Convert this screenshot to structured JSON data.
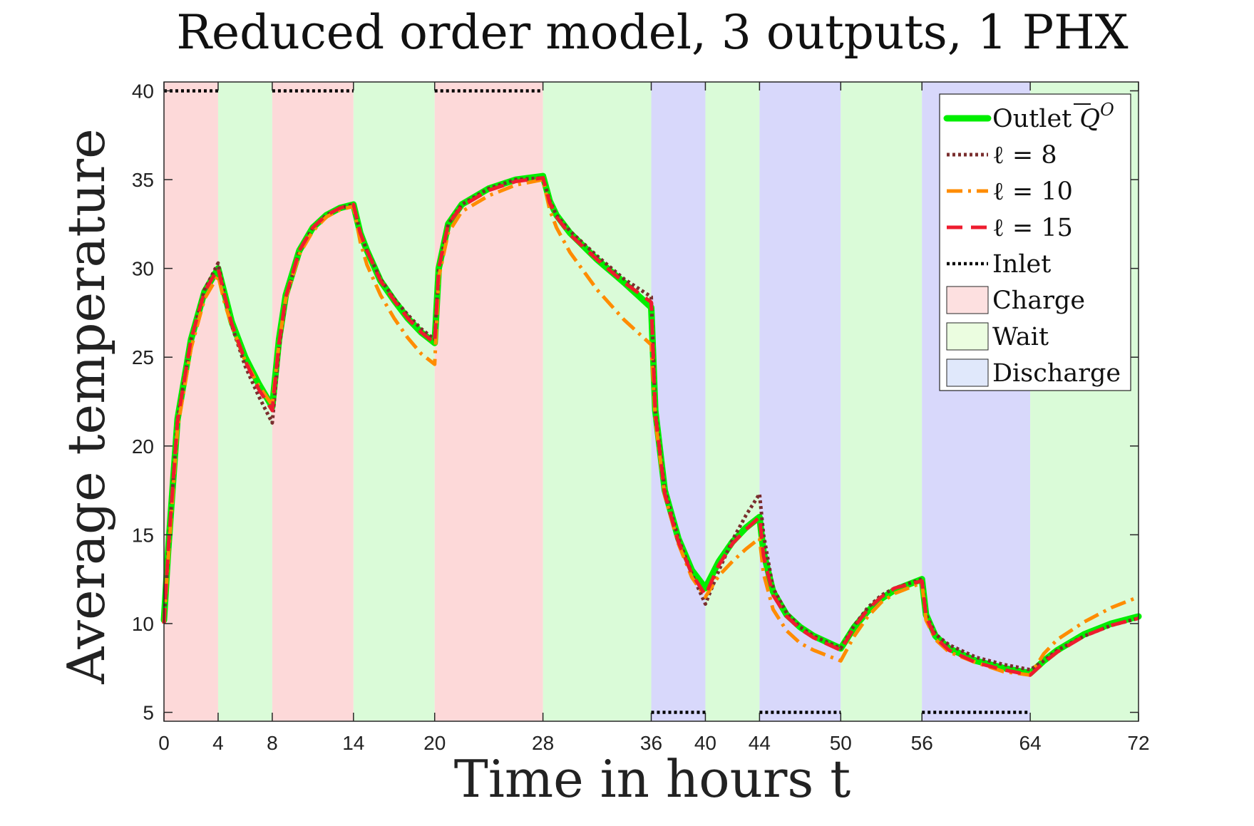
{
  "chart_data": {
    "type": "line",
    "title": "Reduced order model, 3 outputs, 1 PHX",
    "xlabel": "Time in hours t",
    "ylabel": "Average temperature",
    "xlim": [
      0,
      72
    ],
    "ylim": [
      4.5,
      40.5
    ],
    "xticks": [
      0,
      4,
      8,
      14,
      20,
      28,
      36,
      40,
      44,
      50,
      56,
      64,
      72
    ],
    "yticks": [
      5,
      10,
      15,
      20,
      25,
      30,
      35,
      40
    ],
    "grid": false,
    "legend_position": "top-right",
    "phases": [
      {
        "label": "Charge",
        "start": 0,
        "end": 4
      },
      {
        "label": "Wait",
        "start": 4,
        "end": 8
      },
      {
        "label": "Charge",
        "start": 8,
        "end": 14
      },
      {
        "label": "Wait",
        "start": 14,
        "end": 20
      },
      {
        "label": "Charge",
        "start": 20,
        "end": 28
      },
      {
        "label": "Wait",
        "start": 28,
        "end": 36
      },
      {
        "label": "Discharge",
        "start": 36,
        "end": 40
      },
      {
        "label": "Wait",
        "start": 40,
        "end": 44
      },
      {
        "label": "Discharge",
        "start": 44,
        "end": 50
      },
      {
        "label": "Wait",
        "start": 50,
        "end": 56
      },
      {
        "label": "Discharge",
        "start": 56,
        "end": 64
      },
      {
        "label": "Wait",
        "start": 64,
        "end": 72
      }
    ],
    "phase_colors": {
      "Charge": "#fdd9d9",
      "Wait": "#dafbd8",
      "Discharge": "#d8d8fb"
    },
    "legend_patch_colors": {
      "Charge": "#fde0e0",
      "Wait": "#ebfde0",
      "Discharge": "#e0e8fb"
    },
    "series": [
      {
        "name": "Outlet",
        "legend_math": "Q^O (overlined)",
        "color": "#00ee00",
        "style": "solid",
        "width": 9,
        "x": [
          0,
          0.3,
          1,
          2,
          3,
          4,
          4.5,
          5,
          6,
          7,
          8,
          8.5,
          9,
          10,
          11,
          12,
          13,
          14,
          14.5,
          15,
          16,
          17,
          18,
          19,
          20,
          20.3,
          21,
          22,
          24,
          26,
          28,
          28.5,
          29,
          30,
          32,
          34,
          36,
          36.3,
          37,
          38,
          39,
          40,
          41,
          42,
          43,
          44,
          44.3,
          45,
          46,
          47,
          48,
          50,
          51,
          52,
          53,
          54,
          56,
          56.3,
          57,
          58,
          60,
          62,
          64,
          65,
          66,
          68,
          70,
          72
        ],
        "y": [
          10.2,
          14,
          21.5,
          26,
          28.7,
          30,
          28.5,
          27,
          25,
          23.5,
          22.2,
          26,
          28.5,
          31,
          32.3,
          33,
          33.4,
          33.6,
          32,
          31,
          29.3,
          28.2,
          27.2,
          26.4,
          25.8,
          30,
          32.5,
          33.6,
          34.5,
          35,
          35.2,
          33.8,
          33,
          32,
          30.5,
          29.2,
          27.8,
          22,
          17.5,
          14.8,
          13,
          12,
          13.5,
          14.6,
          15.4,
          16,
          14,
          11.8,
          10.5,
          9.8,
          9.3,
          8.6,
          9.8,
          10.7,
          11.4,
          11.9,
          12.5,
          10.5,
          9.3,
          8.6,
          7.9,
          7.5,
          7.2,
          7.9,
          8.5,
          9.4,
          10,
          10.4
        ]
      },
      {
        "name": "ℓ = 8",
        "color": "#7a2e2e",
        "style": "dotted",
        "width": 5,
        "x": [
          0,
          0.3,
          1,
          2,
          3,
          4,
          4.5,
          5,
          6,
          7,
          8,
          8.5,
          9,
          10,
          11,
          12,
          13,
          14,
          14.5,
          15,
          16,
          17,
          18,
          19,
          20,
          20.3,
          21,
          22,
          24,
          26,
          28,
          28.5,
          29,
          30,
          32,
          34,
          36,
          36.3,
          37,
          38,
          39,
          40,
          41,
          42,
          43,
          44,
          44.3,
          45,
          46,
          47,
          48,
          50,
          51,
          52,
          53,
          54,
          56,
          56.3,
          57,
          58,
          60,
          62,
          64,
          65,
          66,
          68,
          70,
          72
        ],
        "y": [
          10,
          14,
          21.5,
          26,
          28.8,
          30.3,
          28.4,
          26.8,
          24.5,
          22.8,
          21.3,
          25.5,
          28.3,
          31,
          32.3,
          33,
          33.4,
          33.6,
          32,
          31,
          29.4,
          28.3,
          27.4,
          26.6,
          26,
          30,
          32.5,
          33.6,
          34.5,
          35,
          35.1,
          33.8,
          33,
          32.1,
          30.7,
          29.4,
          28.4,
          22,
          17.5,
          14.8,
          12.8,
          11.1,
          13,
          14.7,
          16.1,
          17.3,
          15,
          12,
          10.6,
          9.8,
          9.3,
          8.6,
          9.9,
          10.9,
          11.6,
          12,
          12.5,
          10.5,
          9.4,
          8.8,
          8.1,
          7.7,
          7.4,
          7.9,
          8.5,
          9.3,
          9.9,
          10.3
        ]
      },
      {
        "name": "ℓ = 10",
        "color": "#ff8c00",
        "style": "dashdot",
        "width": 5,
        "x": [
          0,
          0.3,
          1,
          2,
          3,
          4,
          4.5,
          5,
          6,
          7,
          8,
          8.5,
          9,
          10,
          11,
          12,
          13,
          14,
          14.5,
          15,
          16,
          17,
          18,
          19,
          20,
          20.3,
          21,
          22,
          24,
          26,
          28,
          28.5,
          29,
          30,
          32,
          34,
          36,
          36.3,
          37,
          38,
          39,
          40,
          41,
          42,
          43,
          44,
          44.3,
          45,
          46,
          47,
          48,
          50,
          51,
          52,
          53,
          54,
          56,
          56.3,
          57,
          58,
          60,
          62,
          64,
          65,
          66,
          68,
          70,
          72
        ],
        "y": [
          10,
          13.5,
          21,
          25.5,
          28.3,
          29.6,
          28,
          26.8,
          24.8,
          23.4,
          22.3,
          25.8,
          28.3,
          30.8,
          32.1,
          32.9,
          33.3,
          33.5,
          31.5,
          30.2,
          28.5,
          27.2,
          26.1,
          25.2,
          24.6,
          29.5,
          32,
          33.2,
          34.1,
          34.7,
          35,
          33.3,
          32.3,
          30.9,
          28.8,
          27.1,
          25.7,
          21.5,
          17.2,
          14.5,
          12.6,
          11.5,
          12.7,
          13.5,
          14.2,
          14.8,
          12.8,
          10.8,
          9.6,
          8.9,
          8.5,
          7.9,
          9.3,
          10.4,
          11.2,
          11.7,
          12.3,
          10.2,
          9.1,
          8.4,
          7.8,
          7.3,
          7.1,
          8.3,
          9.1,
          10.1,
          10.9,
          11.5
        ]
      },
      {
        "name": "ℓ = 15",
        "color": "#ee1c2e",
        "style": "dashed",
        "width": 5,
        "x": [
          0,
          0.3,
          1,
          2,
          3,
          4,
          4.5,
          5,
          6,
          7,
          8,
          8.5,
          9,
          10,
          11,
          12,
          13,
          14,
          14.5,
          15,
          16,
          17,
          18,
          19,
          20,
          20.3,
          21,
          22,
          24,
          26,
          28,
          28.5,
          29,
          30,
          32,
          34,
          36,
          36.3,
          37,
          38,
          39,
          40,
          41,
          42,
          43,
          44,
          44.3,
          45,
          46,
          47,
          48,
          50,
          51,
          52,
          53,
          54,
          56,
          56.3,
          57,
          58,
          60,
          62,
          64,
          65,
          66,
          68,
          70,
          72
        ],
        "y": [
          10,
          14,
          21.4,
          26,
          28.7,
          30,
          28.4,
          26.9,
          24.8,
          23.2,
          22,
          25.8,
          28.4,
          31,
          32.3,
          33,
          33.4,
          33.6,
          32,
          31,
          29.3,
          28.2,
          27.2,
          26.4,
          25.8,
          30,
          32.5,
          33.5,
          34.4,
          34.9,
          35.1,
          33.7,
          32.9,
          31.9,
          30.5,
          29.2,
          28.1,
          21.8,
          17.3,
          14.6,
          12.8,
          11.6,
          13.3,
          14.5,
          15.3,
          16,
          13.8,
          11.6,
          10.4,
          9.7,
          9.2,
          8.5,
          9.8,
          10.8,
          11.5,
          12,
          12.4,
          10.4,
          9.2,
          8.5,
          7.8,
          7.4,
          7.1,
          7.8,
          8.4,
          9.3,
          9.9,
          10.3
        ]
      },
      {
        "name": "Inlet",
        "color": "#000000",
        "style": "dotted",
        "width": 4.5,
        "segments": [
          {
            "x": [
              0,
              4
            ],
            "y": [
              40,
              40
            ]
          },
          {
            "x": [
              8,
              14
            ],
            "y": [
              40,
              40
            ]
          },
          {
            "x": [
              20,
              28
            ],
            "y": [
              40,
              40
            ]
          },
          {
            "x": [
              36,
              40
            ],
            "y": [
              5,
              5
            ]
          },
          {
            "x": [
              44,
              50
            ],
            "y": [
              5,
              5
            ]
          },
          {
            "x": [
              56,
              64
            ],
            "y": [
              5,
              5
            ]
          }
        ]
      }
    ]
  }
}
